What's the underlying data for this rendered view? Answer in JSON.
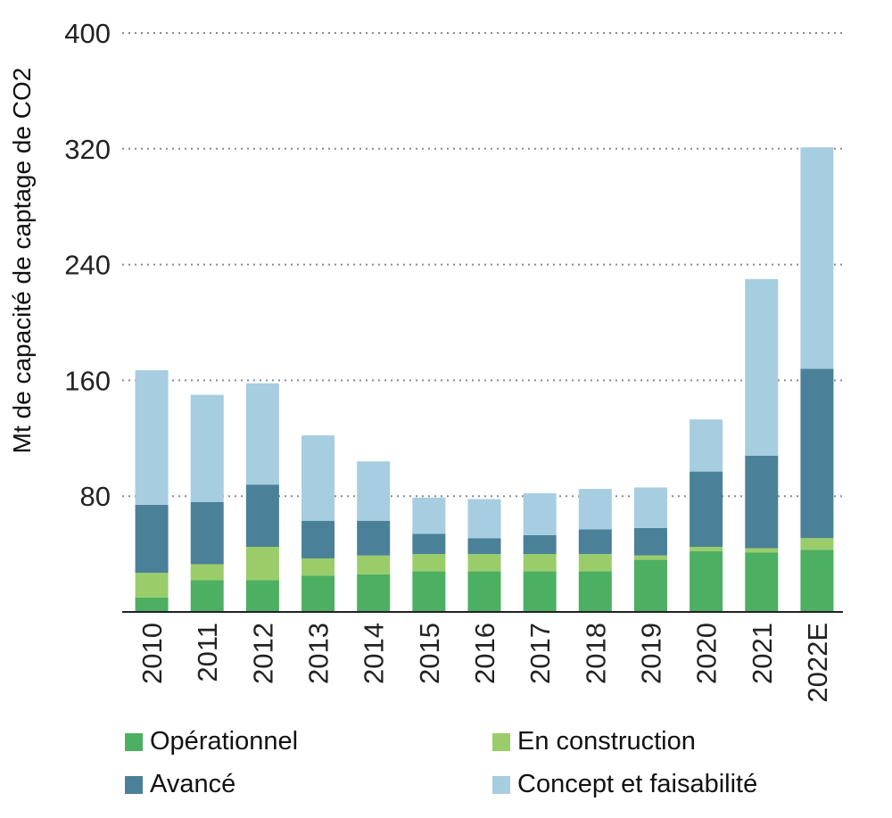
{
  "chart_data": {
    "type": "bar",
    "stacked": true,
    "ylabel": "Mt de capacité de captage de CO2",
    "xlabel": "",
    "ylim": [
      0,
      400
    ],
    "yticks": [
      80,
      160,
      240,
      320,
      400
    ],
    "grid": true,
    "legend_position": "bottom",
    "categories": [
      "2010",
      "2011",
      "2012",
      "2013",
      "2014",
      "2015",
      "2016",
      "2017",
      "2018",
      "2019",
      "2020",
      "2021",
      "2022E"
    ],
    "series": [
      {
        "name": "Opérationnel",
        "color": "#4caf61",
        "values": [
          10,
          22,
          22,
          25,
          26,
          28,
          28,
          28,
          28,
          36,
          42,
          41,
          43
        ]
      },
      {
        "name": "En construction",
        "color": "#9acd6a",
        "values": [
          17,
          11,
          23,
          12,
          13,
          12,
          12,
          12,
          12,
          3,
          3,
          3,
          8
        ]
      },
      {
        "name": "Avancé",
        "color": "#4a8198",
        "values": [
          47,
          43,
          43,
          26,
          24,
          14,
          11,
          13,
          17,
          19,
          52,
          64,
          117
        ]
      },
      {
        "name": "Concept et faisabilité",
        "color": "#a6cde0",
        "values": [
          93,
          74,
          70,
          59,
          41,
          25,
          27,
          29,
          28,
          28,
          36,
          122,
          153
        ]
      }
    ]
  }
}
